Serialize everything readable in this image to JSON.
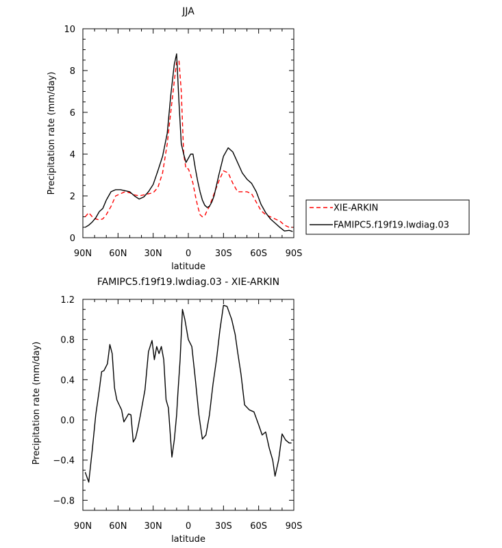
{
  "chart_data": [
    {
      "type": "line",
      "title": "JJA",
      "xlabel": "latitude",
      "ylabel": "Precipitation rate (mm/day)",
      "xlim": [
        90,
        -90
      ],
      "ylim": [
        0,
        10
      ],
      "xticks": [
        90,
        60,
        30,
        0,
        -30,
        -60,
        -90
      ],
      "xtick_labels": [
        "90N",
        "60N",
        "30N",
        "0",
        "30S",
        "60S",
        "90S"
      ],
      "yticks": [
        0,
        2,
        4,
        6,
        8,
        10
      ],
      "ytick_labels": [
        "0",
        "2",
        "4",
        "6",
        "8",
        "10"
      ],
      "legend_position": "right",
      "series": [
        {
          "name": "XIE-ARKIN",
          "color": "#ff0000",
          "style": "dashed",
          "x": [
            88,
            85,
            82,
            79,
            76,
            73,
            70,
            66,
            62,
            58,
            54,
            50,
            46,
            42,
            38,
            34,
            30,
            26,
            22,
            18,
            15,
            12,
            10,
            8,
            6,
            4,
            2,
            0,
            -2,
            -4,
            -6,
            -8,
            -10,
            -12,
            -14,
            -16,
            -18,
            -20,
            -22,
            -26,
            -30,
            -34,
            -38,
            -42,
            -46,
            -50,
            -54,
            -58,
            -62,
            -66,
            -70,
            -74,
            -78,
            -82,
            -86,
            -89
          ],
          "y": [
            1.0,
            1.2,
            1.0,
            0.9,
            0.85,
            0.9,
            1.1,
            1.5,
            2.0,
            2.1,
            2.2,
            2.15,
            2.05,
            2.0,
            2.05,
            2.1,
            2.15,
            2.4,
            3.1,
            4.5,
            6.0,
            7.5,
            8.4,
            8.5,
            7.0,
            4.0,
            3.3,
            3.3,
            3.0,
            2.6,
            2.0,
            1.5,
            1.1,
            1.0,
            1.05,
            1.3,
            1.5,
            1.8,
            2.1,
            2.7,
            3.2,
            3.1,
            2.6,
            2.2,
            2.2,
            2.2,
            2.1,
            1.7,
            1.3,
            1.1,
            1.0,
            0.9,
            0.8,
            0.6,
            0.5,
            0.5
          ]
        },
        {
          "name": "FAMIPC5.f19f19.lwdiag.03",
          "color": "#000000",
          "style": "solid",
          "x": [
            88,
            85,
            82,
            79,
            76,
            73,
            70,
            66,
            62,
            58,
            54,
            50,
            46,
            42,
            38,
            34,
            30,
            26,
            22,
            18,
            15,
            12,
            10,
            8,
            6,
            4,
            2,
            0,
            -2,
            -4,
            -6,
            -8,
            -10,
            -12,
            -14,
            -16,
            -18,
            -20,
            -22,
            -26,
            -30,
            -34,
            -38,
            -42,
            -46,
            -50,
            -54,
            -58,
            -62,
            -66,
            -70,
            -74,
            -78,
            -82,
            -86,
            -89
          ],
          "y": [
            0.5,
            0.6,
            0.75,
            0.95,
            1.25,
            1.4,
            1.8,
            2.2,
            2.3,
            2.3,
            2.25,
            2.2,
            2.0,
            1.85,
            1.95,
            2.2,
            2.55,
            3.2,
            3.9,
            5.0,
            6.8,
            8.3,
            8.8,
            6.5,
            4.5,
            4.0,
            3.6,
            3.8,
            4.0,
            4.0,
            3.3,
            2.7,
            2.2,
            1.8,
            1.55,
            1.45,
            1.5,
            1.7,
            2.0,
            3.0,
            3.9,
            4.3,
            4.1,
            3.6,
            3.1,
            2.8,
            2.6,
            2.2,
            1.6,
            1.2,
            0.9,
            0.7,
            0.5,
            0.32,
            0.35,
            0.3
          ]
        }
      ]
    },
    {
      "type": "line",
      "title": "FAMIPC5.f19f19.lwdiag.03 - XIE-ARKIN",
      "xlabel": "latitude",
      "ylabel": "Precipitation rate (mm/day)",
      "xlim": [
        90,
        -90
      ],
      "ylim": [
        -0.9,
        1.2
      ],
      "xticks": [
        90,
        60,
        30,
        0,
        -30,
        -60,
        -90
      ],
      "xtick_labels": [
        "90N",
        "60N",
        "30N",
        "0",
        "30S",
        "60S",
        "90S"
      ],
      "yticks": [
        1.2,
        0.8,
        0.4,
        0.0,
        -0.4,
        -0.8
      ],
      "ytick_labels": [
        "1.2",
        "0.8",
        "0.4",
        "0.0",
        "−0.4",
        "−0.8"
      ],
      "series": [
        {
          "name": "",
          "color": "#000000",
          "style": "solid",
          "x": [
            88,
            85,
            82,
            79,
            76,
            74,
            72,
            69,
            67,
            65,
            63,
            61,
            59,
            57,
            55,
            53,
            51,
            49,
            47,
            45,
            43,
            41,
            37,
            34,
            31,
            29,
            27,
            25,
            23,
            21,
            19,
            17,
            14,
            12,
            10,
            9,
            7,
            5,
            3,
            0,
            -3,
            -6,
            -9,
            -12,
            -15,
            -18,
            -21,
            -24,
            -27,
            -30,
            -33,
            -37,
            -40,
            -42,
            -45,
            -48,
            -52,
            -56,
            -60,
            -63,
            -66,
            -69,
            -72,
            -74,
            -77,
            -80,
            -83,
            -86,
            -88
          ],
          "y": [
            -0.52,
            -0.62,
            -0.3,
            0.05,
            0.3,
            0.48,
            0.49,
            0.56,
            0.75,
            0.66,
            0.32,
            0.2,
            0.15,
            0.1,
            -0.02,
            0.02,
            0.06,
            0.05,
            -0.22,
            -0.18,
            -0.08,
            0.04,
            0.3,
            0.68,
            0.79,
            0.6,
            0.73,
            0.66,
            0.73,
            0.6,
            0.2,
            0.12,
            -0.37,
            -0.2,
            0.05,
            0.25,
            0.6,
            1.1,
            1.0,
            0.8,
            0.73,
            0.4,
            0.05,
            -0.19,
            -0.15,
            0.05,
            0.35,
            0.6,
            0.9,
            1.14,
            1.13,
            1.0,
            0.85,
            0.68,
            0.45,
            0.15,
            0.1,
            0.08,
            -0.05,
            -0.15,
            -0.12,
            -0.28,
            -0.4,
            -0.56,
            -0.4,
            -0.14,
            -0.2,
            -0.23,
            -0.23
          ]
        }
      ]
    }
  ]
}
